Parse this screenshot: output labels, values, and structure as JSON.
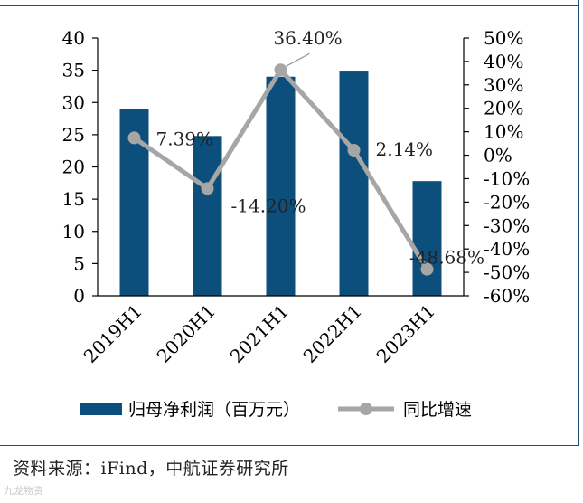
{
  "chart_data": {
    "type": "bar",
    "categories": [
      "2019H1",
      "2020H1",
      "2021H1",
      "2022H1",
      "2023H1"
    ],
    "series": [
      {
        "name": "归母净利润（百万元）",
        "type": "bar",
        "axis": "left",
        "values": [
          29.0,
          24.8,
          34.0,
          34.8,
          17.8
        ]
      },
      {
        "name": "同比增速",
        "type": "line",
        "axis": "right",
        "values": [
          7.39,
          -14.2,
          36.4,
          2.14,
          -48.68
        ],
        "labels": [
          "7.39%",
          "-14.20%",
          "36.40%",
          "2.14%",
          "-48.68%"
        ]
      }
    ],
    "y_left": {
      "range": [
        0,
        40
      ],
      "ticks": [
        "0",
        "5",
        "10",
        "15",
        "20",
        "25",
        "30",
        "35",
        "40"
      ]
    },
    "y_right": {
      "range": [
        -60,
        50
      ],
      "ticks": [
        "-60%",
        "-50%",
        "-40%",
        "-30%",
        "-20%",
        "-10%",
        "0%",
        "10%",
        "20%",
        "30%",
        "40%",
        "50%"
      ]
    },
    "legend_position": "bottom",
    "grid": false,
    "colors": {
      "bar": "#0d4f7c",
      "line": "#a6a6a6",
      "axis": "#000000"
    }
  },
  "source_text": "资料来源：iFind，中航证券研究所",
  "watermark_text": "九龙物资"
}
